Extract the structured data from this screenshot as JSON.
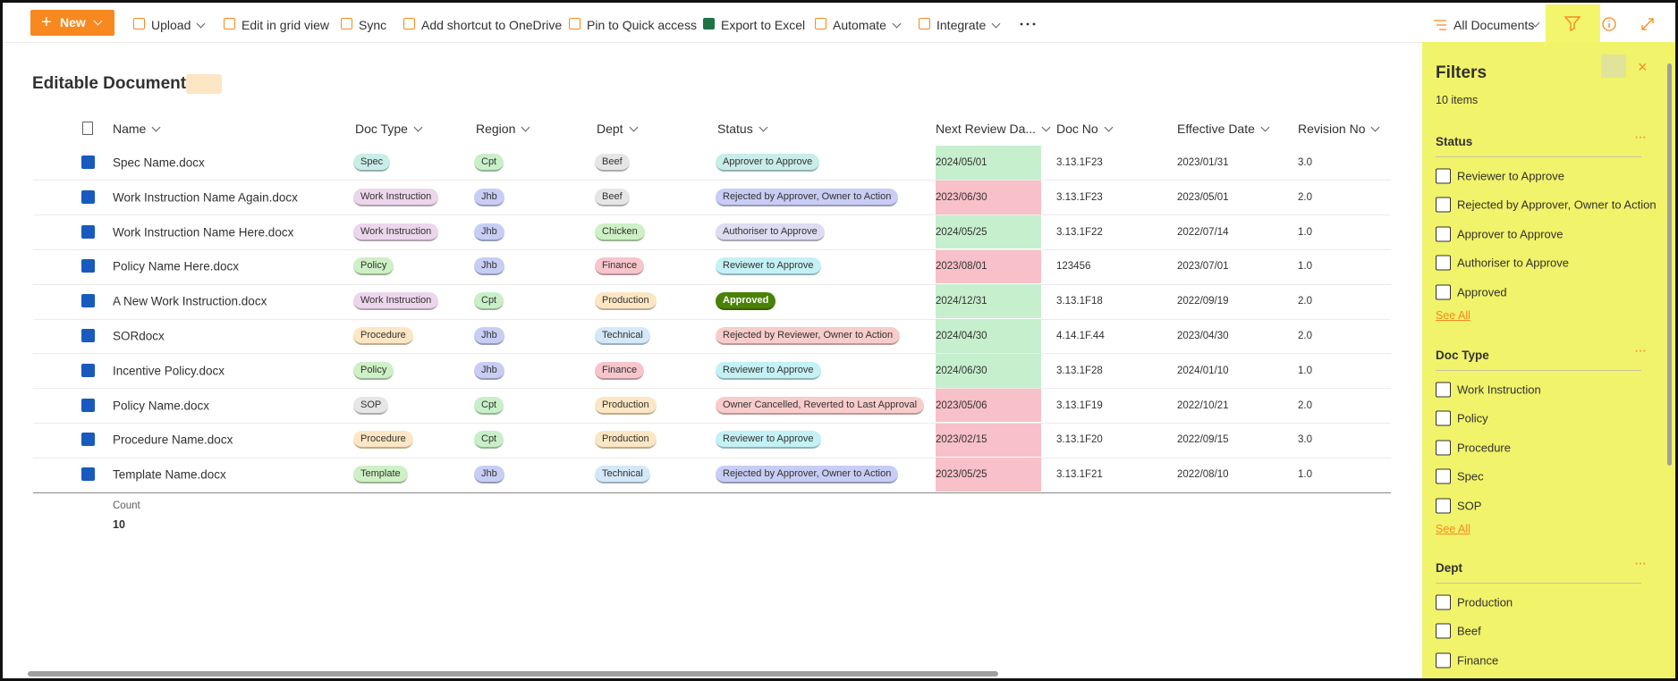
{
  "toolbar": {
    "new": "New",
    "commands": [
      "Upload",
      "Edit in grid view",
      "Sync",
      "Add shortcut to OneDrive",
      "Pin to Quick access",
      "Export to Excel",
      "Automate",
      "Integrate"
    ],
    "view": "All Documents"
  },
  "library": {
    "title": "Editable Documents"
  },
  "table": {
    "columns": [
      "Name",
      "Doc Type",
      "Region",
      "Dept",
      "Status",
      "Next Review Da...",
      "Doc No",
      "Effective Date",
      "Revision No"
    ],
    "rows": [
      [
        "Spec Name.docx",
        "Spec",
        "Cpt",
        "Beef",
        "Approver to Approve",
        "2024/05/01",
        "3.13.1F23",
        "2023/01/31",
        "3.0"
      ],
      [
        "Work Instruction Name Again.docx",
        "Work Instruction",
        "Jhb",
        "Beef",
        "Rejected by Approver, Owner to Action",
        "2023/06/30",
        "3.13.1F23",
        "2023/05/01",
        "2.0"
      ],
      [
        "Work Instruction Name Here.docx",
        "Work Instruction",
        "Jhb",
        "Chicken",
        "Authoriser to Approve",
        "2024/05/25",
        "3.13.1F22",
        "2022/07/14",
        "1.0"
      ],
      [
        "Policy Name Here.docx",
        "Policy",
        "Jhb",
        "Finance",
        "Reviewer to Approve",
        "2023/08/01",
        "123456",
        "2023/07/01",
        "1.0"
      ],
      [
        "A New Work Instruction.docx",
        "Work Instruction",
        "Cpt",
        "Production",
        "Approved",
        "2024/12/31",
        "3.13.1F18",
        "2022/09/19",
        "2.0"
      ],
      [
        "SORdocx",
        "Procedure",
        "Jhb",
        "Technical",
        "Rejected by Reviewer, Owner to Action",
        "2024/04/30",
        "4.14.1F.44",
        "2023/04/30",
        "2.0"
      ],
      [
        "Incentive Policy.docx",
        "Policy",
        "Jhb",
        "Finance",
        "Reviewer to Approve",
        "2024/06/30",
        "3.13.1F28",
        "2024/01/10",
        "1.0"
      ],
      [
        "Policy Name.docx",
        "SOP",
        "Cpt",
        "Production",
        "Owner Cancelled, Reverted to Last Approval",
        "2023/05/06",
        "3.13.1F19",
        "2022/10/21",
        "2.0"
      ],
      [
        "Procedure Name.docx",
        "Procedure",
        "Cpt",
        "Production",
        "Reviewer to Approve",
        "2023/02/15",
        "3.13.1F20",
        "2022/09/15",
        "3.0"
      ],
      [
        "Template Name.docx",
        "Template",
        "Jhb",
        "Technical",
        "Rejected by Approver, Owner to Action",
        "2023/05/25",
        "3.13.1F21",
        "2022/08/10",
        "1.0"
      ]
    ],
    "review_colors": [
      "#c6efce",
      "#f8c0c8",
      "#c6efce",
      "#f8c0c8",
      "#c6efce",
      "#c6efce",
      "#c6efce",
      "#f8c0c8",
      "#f8c0c8",
      "#f8c0c8"
    ],
    "footer": {
      "label": "Count",
      "value": "10"
    }
  },
  "pill_colors": {
    "Spec": "#c9ede9",
    "Work Instruction": "#ecd6ec",
    "Policy": "#cdf0c4",
    "Procedure": "#fde6c3",
    "SOP": "#e6e6e6",
    "Template": "#cdf0c4",
    "Cpt": "#c9efc9",
    "Jhb": "#c8cdf5",
    "Beef": "#e6e6e6",
    "Chicken": "#cdf0c4",
    "Finance": "#f7c5cc",
    "Production": "#fde6c3",
    "Technical": "#d3e8f8",
    "Approver to Approve": "#c9ede9",
    "Rejected by Approver, Owner to Action": "#c8cdf5",
    "Authoriser to Approve": "#dedcf2",
    "Reviewer to Approve": "#c4f1f5",
    "Approved": "#498205",
    "Rejected by Reviewer, Owner to Action": "#f9cccc",
    "Owner Cancelled, Reverted to Last Approval": "#f9cccc"
  },
  "filters": {
    "title": "Filters",
    "count": "10 items",
    "groups": [
      {
        "title": "Status",
        "options": [
          "Reviewer to Approve",
          "Rejected by Approver, Owner to Action",
          "Approver to Approve",
          "Authoriser to Approve",
          "Approved"
        ],
        "see_all": "See All"
      },
      {
        "title": "Doc Type",
        "options": [
          "Work Instruction",
          "Policy",
          "Procedure",
          "Spec",
          "SOP"
        ],
        "see_all": "See All"
      },
      {
        "title": "Dept",
        "options": [
          "Production",
          "Beef",
          "Finance"
        ]
      }
    ]
  }
}
